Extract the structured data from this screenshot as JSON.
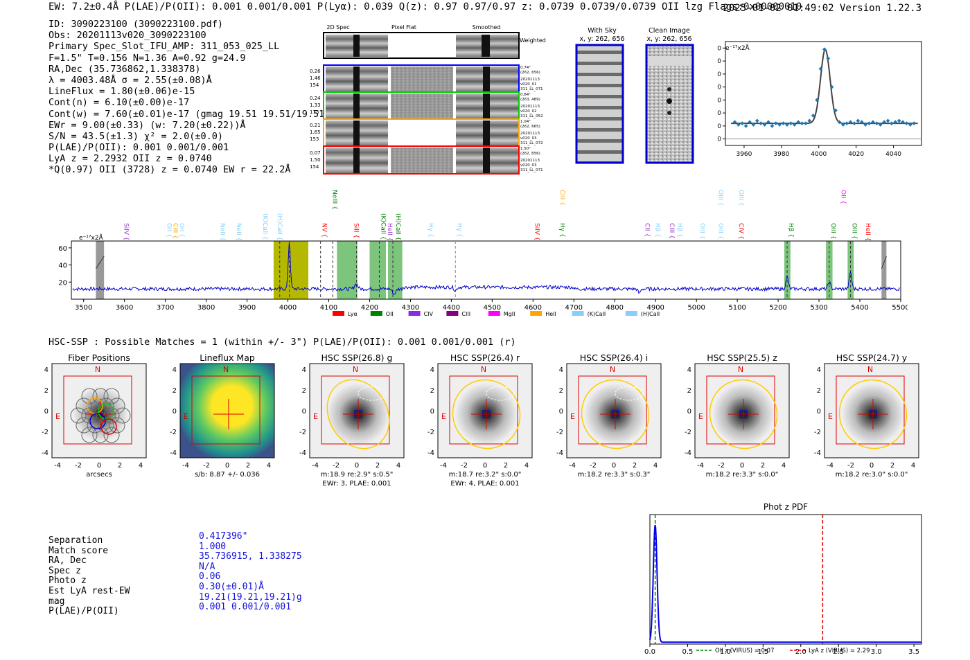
{
  "header": {
    "left": "EW: 7.2±0.4Å  P(LAE)/P(OII): 0.001 0.001/0.001  P(Lyα): 0.039  Q(z): 0.97 0.97/0.97  z: 0.0739 0.0739/0.0739 OII   lzg  Flags:0x00000010",
    "right": "2025-01-02 01:49:02  Version 1.22.3"
  },
  "info_lines": [
    "ID: 3090223100 (3090223100.pdf)",
    "Obs: 20201113v020_3090223100",
    "Primary Spec_Slot_IFU_AMP: 311_053_025_LL",
    "F=1.5\"  T=0.156  N=1.36  A=0.92  g=24.9",
    "RA,Dec (35.736862,1.338378)",
    "λ = 4003.48Å  σ = 2.55(±0.08)Å",
    "LineFlux = 1.80(±0.06)e-15",
    "Cont(n) = 6.10(±0.00)e-17",
    "Cont(w) = 7.60(±0.01)e-17 (gmag 19.51 19.51/19.51 *)",
    "EWr = 9.00(±0.33) (w: 7.20(±0.22))Å",
    "S/N = 43.5(±1.3)  χ² = 2.0(±0.0)",
    "P(LAE)/P(OII): 0.001 0.001/0.001",
    "LyA z = 2.2932  OII z = 0.0740",
    "*Q(0.97) OII (3728) z = 0.0740  EW r = 22.2Å"
  ],
  "cutouts": {
    "column_labels": [
      "2D Spec",
      "Pixel Flat",
      "Smoothed"
    ],
    "weighted_label": "Weighted Sum",
    "rows": [
      {
        "left": [
          "0.26",
          "1.46",
          "154"
        ],
        "right": [
          "0.74\"",
          "(262, 656)",
          "20201113",
          "v020_01",
          "311_LL_071"
        ],
        "color": "#0000ff"
      },
      {
        "left": [
          "0.24",
          "1.33",
          "173"
        ],
        "right": [
          "0.84\"",
          "(263, 489)",
          "20201113",
          "v020_02",
          "311_LL_052"
        ],
        "color": "#00cc00"
      },
      {
        "left": [
          "0.21",
          "1.65",
          "153"
        ],
        "right": [
          "1.04\"",
          "(262, 665)",
          "20201113",
          "v020_03",
          "311_LL_072"
        ],
        "color": "#ffa500"
      },
      {
        "left": [
          "0.07",
          "1.50",
          "154"
        ],
        "right": [
          "1.50\"",
          "(262, 656)",
          "20201113",
          "v020_03",
          "311_LL_071"
        ],
        "color": "#ff0000"
      }
    ]
  },
  "sky_panels": {
    "with_sky": {
      "title": "With Sky",
      "coords": "x, y: 262, 656"
    },
    "clean": {
      "title": "Clean Image",
      "coords": "x, y: 262, 656"
    }
  },
  "line_fit_chart": {
    "type": "scatter",
    "unit_label": "e⁻¹⁷x2Å",
    "xlim": [
      3950,
      4055
    ],
    "ylim": [
      -5,
      75
    ],
    "xticks": [
      3960,
      3980,
      4000,
      4020,
      4040
    ],
    "yticks": [
      0,
      10,
      20,
      30,
      40,
      50,
      60,
      70
    ],
    "points_x": [
      3955,
      3957,
      3959,
      3961,
      3963,
      3965,
      3967,
      3969,
      3971,
      3973,
      3975,
      3977,
      3979,
      3981,
      3983,
      3985,
      3987,
      3989,
      3991,
      3993,
      3995,
      3997,
      3999,
      4001,
      4003,
      4005,
      4007,
      4009,
      4011,
      4013,
      4015,
      4017,
      4019,
      4021,
      4023,
      4025,
      4027,
      4029,
      4031,
      4033,
      4035,
      4037,
      4039,
      4041,
      4043,
      4045,
      4047,
      4049,
      4051
    ],
    "points_y": [
      13,
      11,
      12,
      10,
      13,
      11,
      14,
      12,
      11,
      13,
      10,
      12,
      11,
      12,
      11,
      12,
      11,
      13,
      12,
      12,
      14,
      18,
      30,
      54,
      69,
      62,
      40,
      22,
      13,
      11,
      12,
      13,
      12,
      14,
      13,
      11,
      12,
      13,
      12,
      11,
      13,
      14,
      12,
      13,
      14,
      13,
      12,
      11,
      12
    ],
    "model": {
      "center": 4003.48,
      "sigma": 2.55,
      "amplitude": 57,
      "continuum": 12
    }
  },
  "spectrum_chart": {
    "type": "line",
    "unit_label": "e⁻¹⁷x2Å",
    "xlim": [
      3470,
      5500
    ],
    "ylim": [
      0,
      68
    ],
    "xticks": [
      3500,
      3600,
      3700,
      3800,
      3900,
      4000,
      4100,
      4200,
      4300,
      4400,
      4500,
      4600,
      4700,
      4800,
      4900,
      5000,
      5100,
      5200,
      5300,
      5400,
      5500
    ],
    "yticks": [
      20,
      40,
      60
    ],
    "baseline": 12,
    "features": [
      {
        "center": 4003.5,
        "sigma": 2.6,
        "amp": 55
      },
      {
        "center": 4167,
        "sigma": 4,
        "amp": 6
      },
      {
        "center": 4260,
        "sigma": 4,
        "amp": -6
      },
      {
        "center": 4410,
        "sigma": 3,
        "amp": -4
      },
      {
        "center": 4860,
        "sigma": 3,
        "amp": -5
      },
      {
        "center": 5222,
        "sigma": 3,
        "amp": 14
      },
      {
        "center": 5325,
        "sigma": 3,
        "amp": 8
      },
      {
        "center": 5377,
        "sigma": 3,
        "amp": 20
      }
    ],
    "bands_olive": [
      [
        3965,
        4050
      ]
    ],
    "bands_green": [
      [
        4120,
        4170
      ],
      [
        4200,
        4240
      ],
      [
        4245,
        4280
      ],
      [
        5215,
        5230
      ],
      [
        5317,
        5333
      ],
      [
        5370,
        5385
      ]
    ],
    "bands_gray": [
      [
        3530,
        3550
      ],
      [
        5453,
        5465
      ]
    ],
    "dashed_black": [
      3980,
      4003.5,
      4080,
      4110,
      4168,
      4224,
      4257,
      5222,
      5325,
      5377
    ],
    "dashed_gray": [
      4410
    ],
    "line_labels": [
      {
        "text": "SiIV",
        "x": 3595,
        "color": "#9932cc",
        "tier": 3
      },
      {
        "text": "OII",
        "x": 3700,
        "color": "#87cefa",
        "tier": 3
      },
      {
        "text": "CIII",
        "x": 3715,
        "color": "#ffa500",
        "tier": 3
      },
      {
        "text": "OII",
        "x": 3730,
        "color": "#87cefa",
        "tier": 3
      },
      {
        "text": "NeII",
        "x": 3830,
        "color": "#87cefa",
        "tier": 3
      },
      {
        "text": "NeII",
        "x": 3870,
        "color": "#87cefa",
        "tier": 3
      },
      {
        "text": "(K)CaII",
        "x": 3935,
        "color": "#87cefa",
        "tier": 2
      },
      {
        "text": "(H)CaII",
        "x": 3970,
        "color": "#87cefa",
        "tier": 2
      },
      {
        "text": "NV",
        "x": 4080,
        "color": "#ff0000",
        "tier": 3
      },
      {
        "text": "NeIII",
        "x": 4105,
        "color": "#008000",
        "tier": 1
      },
      {
        "text": "SiII",
        "x": 4158,
        "color": "#ff0000",
        "tier": 3
      },
      {
        "text": "(K)CaII",
        "x": 4224,
        "color": "#008000",
        "tier": 2
      },
      {
        "text": "HeII",
        "x": 4240,
        "color": "#9932cc",
        "tier": 3
      },
      {
        "text": "(H)CaII",
        "x": 4260,
        "color": "#008000",
        "tier": 2
      },
      {
        "text": "Hγ",
        "x": 4340,
        "color": "#87cefa",
        "tier": 3
      },
      {
        "text": "Hγ",
        "x": 4410,
        "color": "#87cefa",
        "tier": 3
      },
      {
        "text": "SiIV",
        "x": 4600,
        "color": "#ff0000",
        "tier": 3
      },
      {
        "text": "CIII",
        "x": 4662,
        "color": "#ffa500",
        "tier": 1
      },
      {
        "text": "Hγ",
        "x": 4662,
        "color": "#008000",
        "tier": 3
      },
      {
        "text": "CII",
        "x": 4870,
        "color": "#9932cc",
        "tier": 3
      },
      {
        "text": "Hβ",
        "x": 4895,
        "color": "#87cefa",
        "tier": 3
      },
      {
        "text": "CIII",
        "x": 4930,
        "color": "#9932cc",
        "tier": 3
      },
      {
        "text": "Hβ",
        "x": 4950,
        "color": "#87cefa",
        "tier": 3
      },
      {
        "text": "OIII",
        "x": 5005,
        "color": "#87cefa",
        "tier": 3
      },
      {
        "text": "OIII",
        "x": 5050,
        "color": "#87cefa",
        "tier": 1
      },
      {
        "text": "OIII",
        "x": 5050,
        "color": "#87cefa",
        "tier": 3
      },
      {
        "text": "OIII",
        "x": 5100,
        "color": "#87cefa",
        "tier": 1
      },
      {
        "text": "CIV",
        "x": 5100,
        "color": "#ff0000",
        "tier": 3
      },
      {
        "text": "Hβ",
        "x": 5222,
        "color": "#008000",
        "tier": 3
      },
      {
        "text": "OIII",
        "x": 5325,
        "color": "#008000",
        "tier": 3
      },
      {
        "text": "OII",
        "x": 5350,
        "color": "#ff00ff",
        "tier": 1
      },
      {
        "text": "OIII",
        "x": 5377,
        "color": "#008000",
        "tier": 3
      },
      {
        "text": "HeII",
        "x": 5410,
        "color": "#ff0000",
        "tier": 3
      }
    ],
    "legend": [
      {
        "label": "Lyα",
        "color": "#ff0000"
      },
      {
        "label": "OII",
        "color": "#008000"
      },
      {
        "label": "CIV",
        "color": "#8a2be2"
      },
      {
        "label": "CIII",
        "color": "#800080"
      },
      {
        "label": "MgII",
        "color": "#ff00ff"
      },
      {
        "label": "HeII",
        "color": "#ffa500"
      },
      {
        "label": "(K)CaII",
        "color": "#87cefa"
      },
      {
        "label": "(H)CaII",
        "color": "#87cefa"
      }
    ]
  },
  "hsc_line": "HSC-SSP : Possible Matches = 1 (within +/- 3\")  P(LAE)/P(OII): 0.001 0.001/0.001 (r)",
  "thumbnails": [
    {
      "title": "Fiber Positions",
      "caption1": "arcsecs",
      "caption2": ""
    },
    {
      "title": "Lineflux Map",
      "caption1": "s/b: 8.87 +/- 0.036",
      "caption2": ""
    },
    {
      "title": "HSC SSP(26.8) g",
      "caption1": "m:18.9  re:2.9\"  s:0.5\"",
      "caption2": "EWr: 3, PLAE: 0.001"
    },
    {
      "title": "HSC SSP(26.4) r",
      "caption1": "m:18.7  re:3.2\"  s:0.0\"",
      "caption2": "EWr: 4, PLAE: 0.001"
    },
    {
      "title": "HSC SSP(26.4) i",
      "caption1": "m:18.2  re:3.3\"  s:0.3\"",
      "caption2": ""
    },
    {
      "title": "HSC SSP(25.5) z",
      "caption1": "m:18.2  re:3.3\"  s:0.0\"",
      "caption2": ""
    },
    {
      "title": "HSC SSP(24.7) y",
      "caption1": "m:18.2  re:3.0\"  s:0.0\"",
      "caption2": ""
    }
  ],
  "thumb_axes": {
    "ticks": [
      "-4",
      "-2",
      "0",
      "2",
      "4"
    ],
    "north": "N",
    "east": "E"
  },
  "match_info": {
    "labels": [
      "Separation",
      "Match score",
      "RA, Dec",
      "Spec z",
      "Photo z",
      "Est LyA rest-EW",
      "mag",
      "P(LAE)/P(OII)"
    ],
    "values": [
      "0.417396\"",
      "1.000",
      "35.736915, 1.338275",
      "N/A",
      "0.06",
      "0.30(±0.01)Å",
      "19.21(19.21,19.21)g",
      "0.001 0.001/0.001"
    ]
  },
  "photz_chart": {
    "type": "line",
    "title": "Phot z PDF",
    "xlim": [
      0,
      3.6
    ],
    "ylim": [
      0,
      1.05
    ],
    "xticks": [
      0.0,
      0.5,
      1.0,
      1.5,
      2.0,
      2.5,
      3.0,
      3.5
    ],
    "pdf_peak": 0.07,
    "pdf_sigma": 0.025,
    "oii_z": 0.07,
    "lya_z": 2.29,
    "legend": [
      {
        "label": "OII z (VIRUS) = 0.07",
        "color": "#008000"
      },
      {
        "label": "LyA z (VIRUS) = 2.29",
        "color": "#dd0000"
      }
    ]
  },
  "colors": {
    "accent_blue": "#0000cc",
    "text_blue": "#1111dd",
    "ellipse": "#ffcc00",
    "frame_red": "#dd0000"
  }
}
